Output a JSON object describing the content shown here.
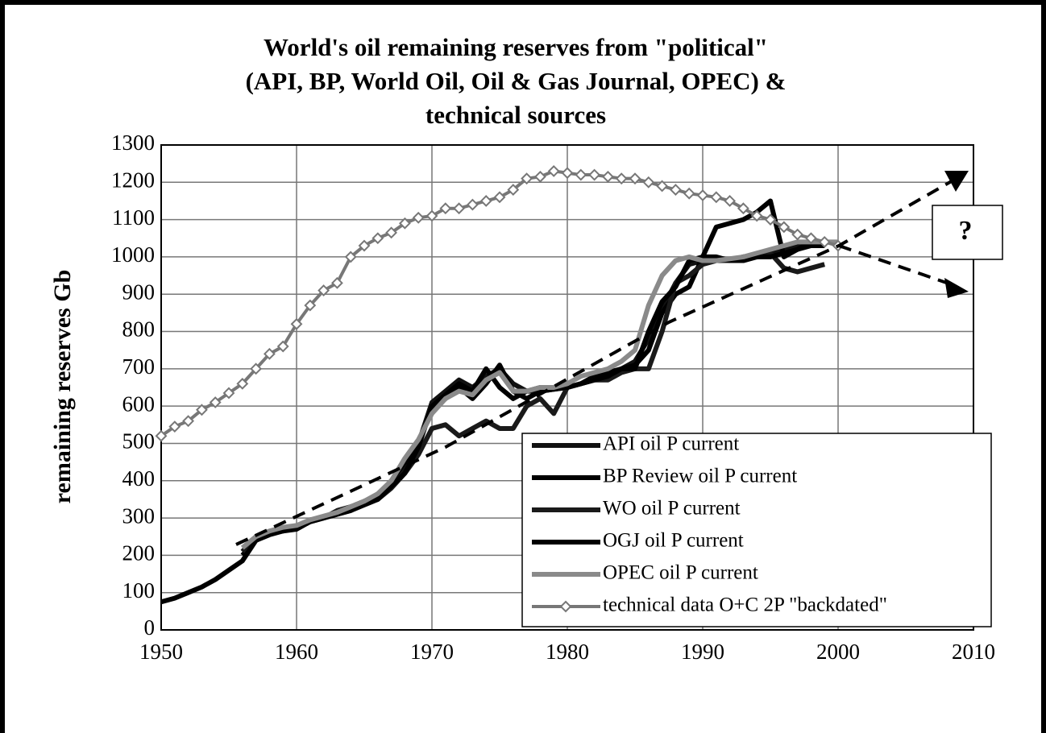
{
  "chart_data": {
    "type": "line",
    "title": [
      "World's oil remaining reserves from \"political\"",
      "(API, BP, World Oil, Oil & Gas Journal, OPEC) &",
      "technical sources"
    ],
    "y_label": "remaining reserves Gb",
    "annotation": "?",
    "x": [
      1950,
      1951,
      1952,
      1953,
      1954,
      1955,
      1956,
      1957,
      1958,
      1959,
      1960,
      1961,
      1962,
      1963,
      1964,
      1965,
      1966,
      1967,
      1968,
      1969,
      1970,
      1971,
      1972,
      1973,
      1974,
      1975,
      1976,
      1977,
      1978,
      1979,
      1980,
      1981,
      1982,
      1983,
      1984,
      1985,
      1986,
      1987,
      1988,
      1989,
      1990,
      1991,
      1992,
      1993,
      1994,
      1995,
      1996,
      1997,
      1998,
      1999,
      2000
    ],
    "xlim": [
      1950,
      2010
    ],
    "xticks": [
      1950,
      1960,
      1970,
      1980,
      1990,
      2000,
      2010
    ],
    "ylim": [
      0,
      1300
    ],
    "yticks": [
      0,
      100,
      200,
      300,
      400,
      500,
      600,
      700,
      800,
      900,
      1000,
      1100,
      1200,
      1300
    ],
    "grid": true,
    "legend": "lower right",
    "series": [
      {
        "name": "API oil P current",
        "color": "#111111",
        "values": [
          null,
          null,
          null,
          null,
          null,
          null,
          210,
          245,
          260,
          270,
          275,
          295,
          300,
          315,
          330,
          345,
          360,
          390,
          440,
          500,
          610,
          640,
          670,
          650,
          680,
          700,
          660,
          640,
          640,
          645,
          650,
          660,
          670,
          680,
          700,
          720,
          780,
          860,
          930,
          980,
          990,
          990,
          990,
          1000,
          1000,
          1010,
          1020,
          1030,
          1040,
          1040,
          null
        ]
      },
      {
        "name": "BP Review oil P current",
        "color": "#000000",
        "values": [
          null,
          null,
          null,
          null,
          null,
          null,
          200,
          240,
          260,
          265,
          270,
          290,
          300,
          310,
          320,
          340,
          360,
          400,
          450,
          500,
          590,
          620,
          650,
          620,
          660,
          710,
          640,
          620,
          640,
          645,
          650,
          660,
          680,
          690,
          700,
          710,
          750,
          850,
          900,
          920,
          1000,
          1080,
          1090,
          1100,
          1120,
          1150,
          1000,
          1020,
          1040,
          1040,
          null
        ]
      },
      {
        "name": "WO oil P current",
        "color": "#1a1a1a",
        "values": [
          null,
          null,
          null,
          null,
          null,
          null,
          210,
          250,
          260,
          270,
          280,
          290,
          300,
          320,
          330,
          340,
          350,
          380,
          420,
          470,
          540,
          550,
          520,
          540,
          560,
          540,
          540,
          600,
          620,
          580,
          650,
          660,
          670,
          670,
          690,
          700,
          700,
          800,
          930,
          950,
          980,
          990,
          990,
          1000,
          1000,
          1010,
          970,
          960,
          970,
          980,
          null
        ]
      },
      {
        "name": "OGJ oil P current",
        "color": "#000000",
        "values": [
          75,
          85,
          100,
          115,
          135,
          160,
          185,
          240,
          255,
          265,
          275,
          290,
          300,
          310,
          320,
          335,
          350,
          385,
          420,
          490,
          600,
          630,
          660,
          640,
          700,
          650,
          620,
          640,
          650,
          650,
          650,
          660,
          670,
          680,
          700,
          700,
          800,
          880,
          920,
          990,
          1000,
          1000,
          990,
          990,
          1000,
          1000,
          1010,
          1020,
          1030,
          1030,
          null
        ]
      },
      {
        "name": "OPEC oil P current",
        "color": "#8a8a8a",
        "values": [
          null,
          null,
          null,
          null,
          null,
          null,
          220,
          250,
          265,
          275,
          280,
          295,
          305,
          315,
          330,
          345,
          365,
          400,
          460,
          510,
          580,
          620,
          640,
          630,
          670,
          690,
          640,
          640,
          650,
          650,
          660,
          680,
          690,
          700,
          720,
          750,
          870,
          950,
          990,
          1000,
          990,
          990,
          995,
          1000,
          1010,
          1020,
          1030,
          1040,
          1040,
          1040,
          1040
        ]
      },
      {
        "name": "technical data O+C 2P \"backdated\"",
        "color": "#777777",
        "marker": "diamond",
        "values": [
          520,
          545,
          560,
          590,
          610,
          635,
          660,
          700,
          740,
          760,
          820,
          870,
          910,
          930,
          1000,
          1030,
          1050,
          1065,
          1090,
          1105,
          1110,
          1130,
          1130,
          1140,
          1150,
          1160,
          1180,
          1210,
          1215,
          1230,
          1225,
          1220,
          1220,
          1215,
          1210,
          1210,
          1200,
          1190,
          1180,
          1170,
          1165,
          1160,
          1150,
          1130,
          1110,
          1100,
          1080,
          1060,
          1050,
          1040,
          1030
        ]
      }
    ]
  }
}
